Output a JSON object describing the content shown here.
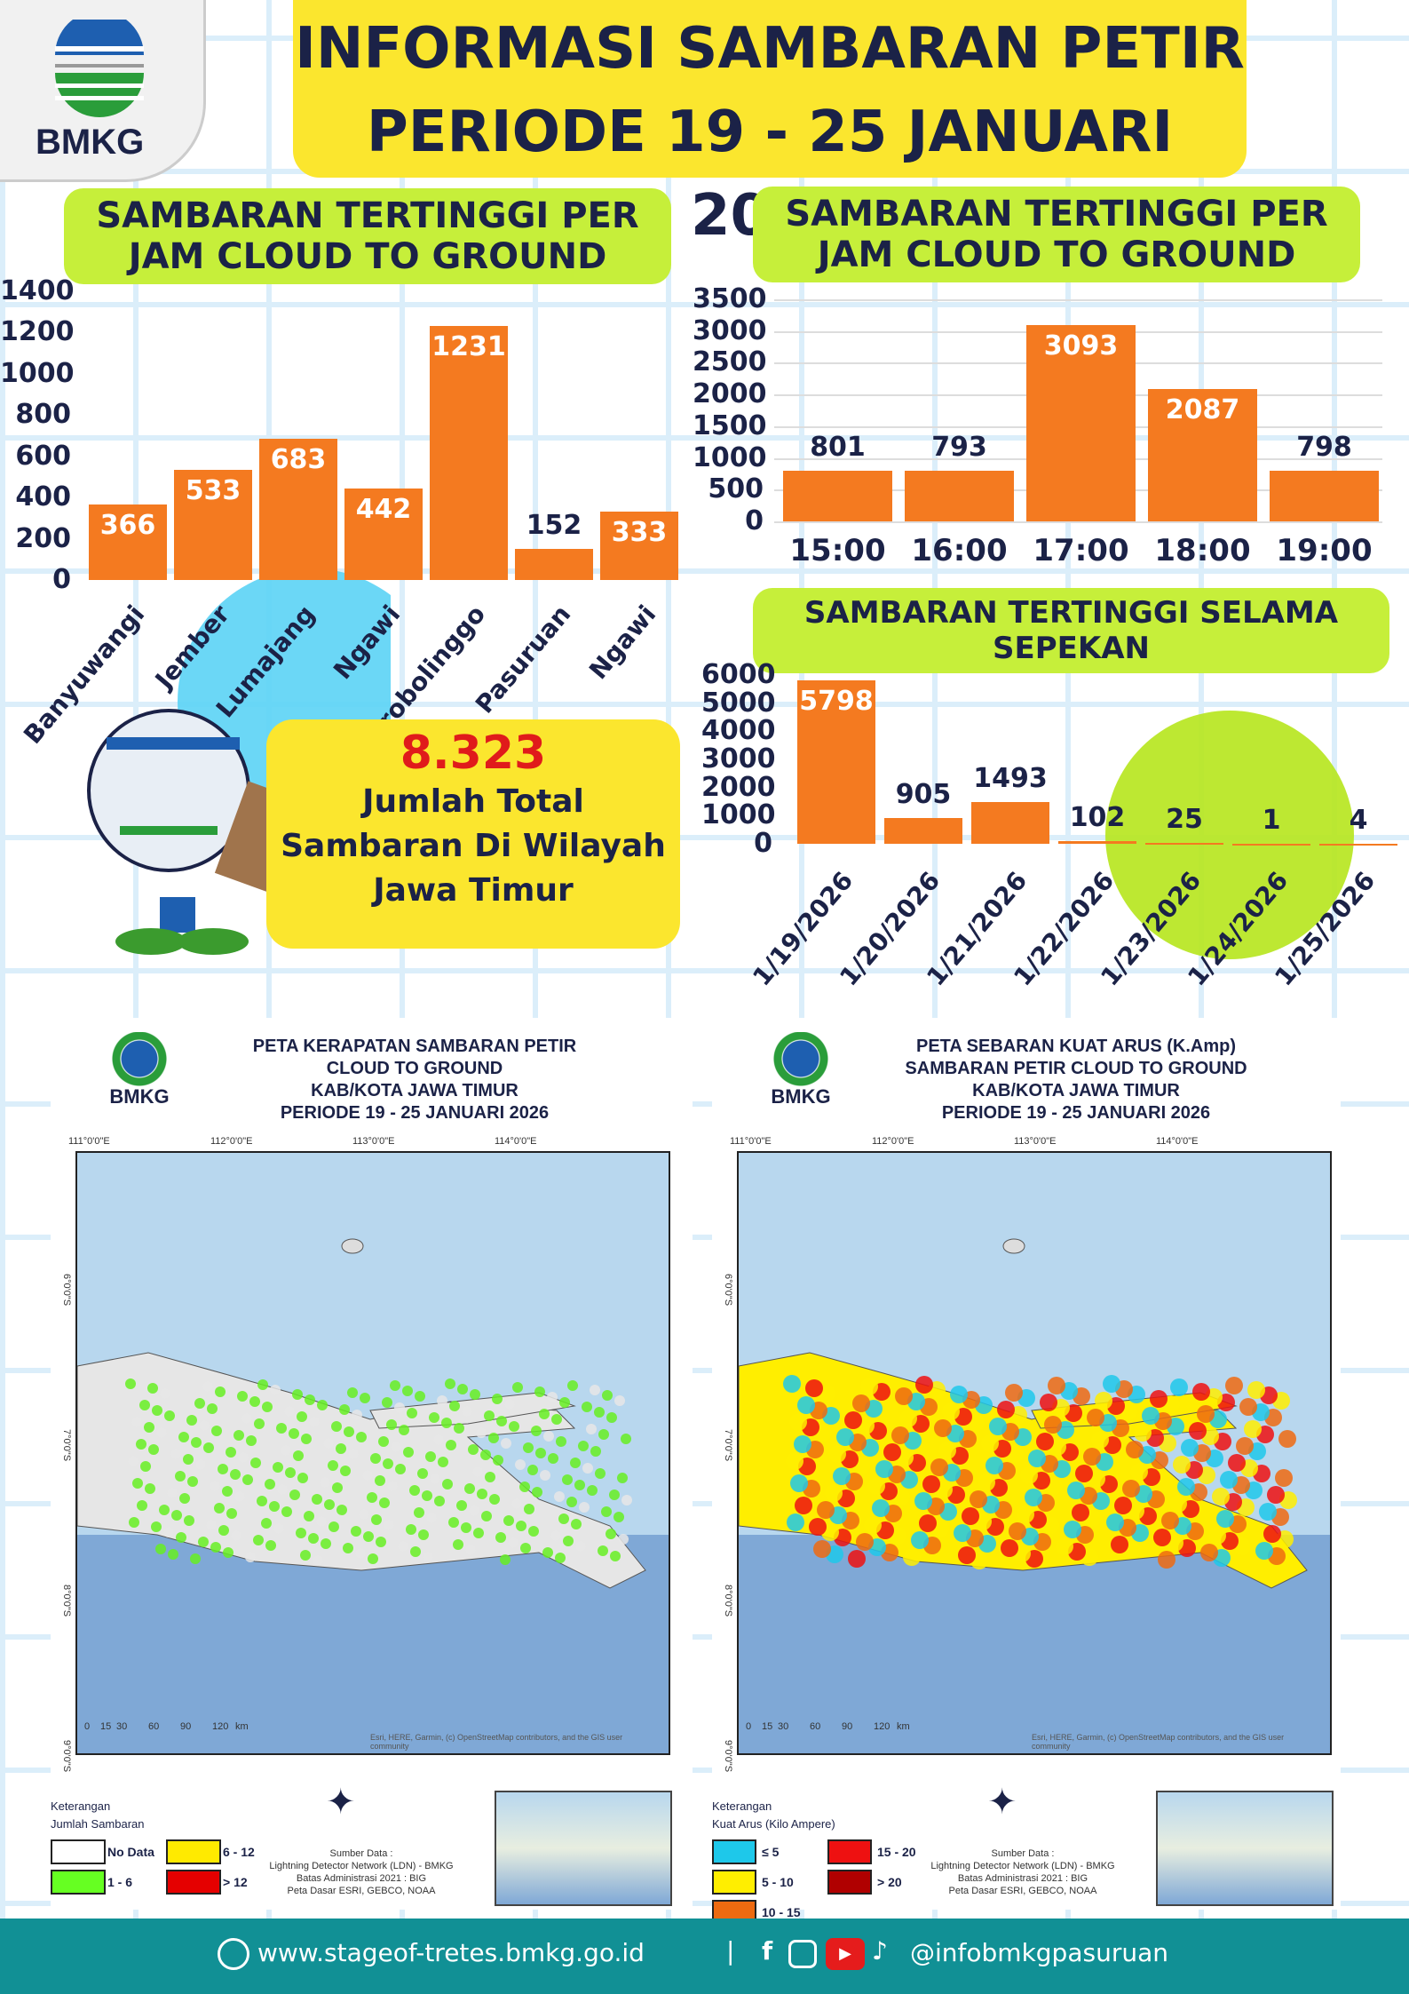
{
  "header": {
    "logo_text": "BMKG",
    "title_line1": "INFORMASI SAMBARAN PETIR",
    "title_line2": "PERIODE 19 - 25 JANUARI 2026"
  },
  "colors": {
    "bar": "#f47a20",
    "title_bg": "#fbe62e",
    "section_bg": "#c6ef3a",
    "footer_bg": "#119095",
    "text": "#1b2247"
  },
  "chart_data": [
    {
      "type": "bar",
      "title": "SAMBARAN TERTINGGI PER JAM CLOUD TO GROUND",
      "categories": [
        "Banyuwangi",
        "Jember",
        "Lumajang",
        "Ngawi",
        "Probolinggo",
        "Pasuruan",
        "Ngawi"
      ],
      "values": [
        366,
        533,
        683,
        442,
        1231,
        152,
        333
      ],
      "yticks": [
        0,
        200,
        400,
        600,
        800,
        1000,
        1200,
        1400
      ],
      "ylim": [
        0,
        1400
      ],
      "grid": false
    },
    {
      "type": "bar",
      "title": "SAMBARAN TERTINGGI PER JAM CLOUD TO GROUND",
      "categories": [
        "15:00",
        "16:00",
        "17:00",
        "18:00",
        "19:00"
      ],
      "values": [
        801,
        793,
        3093,
        2087,
        798
      ],
      "yticks": [
        0,
        500,
        1000,
        1500,
        2000,
        2500,
        3000,
        3500
      ],
      "ylim": [
        0,
        3500
      ],
      "grid": true
    },
    {
      "type": "bar",
      "title": "SAMBARAN TERTINGGI SELAMA SEPEKAN",
      "categories": [
        "1/19/2026",
        "1/20/2026",
        "1/21/2026",
        "1/22/2026",
        "1/23/2026",
        "1/24/2026",
        "1/25/2026"
      ],
      "values": [
        5798,
        905,
        1493,
        102,
        25,
        1,
        4
      ],
      "yticks": [
        0,
        1000,
        2000,
        3000,
        4000,
        5000,
        6000
      ],
      "ylim": [
        0,
        6000
      ],
      "grid": false
    }
  ],
  "total": {
    "value": "8.323",
    "line1": "Jumlah Total",
    "line2": "Sambaran Di Wilayah",
    "line3": "Jawa Timur"
  },
  "map_left": {
    "logo_text": "BMKG",
    "title": [
      "PETA KERAPATAN SAMBARAN PETIR",
      "CLOUD TO GROUND",
      "KAB/KOTA JAWA TIMUR",
      "PERIODE 19 - 25 JANUARI 2026"
    ],
    "lon_ticks": [
      "111°0'0\"E",
      "112°0'0\"E",
      "113°0'0\"E",
      "114°0'0\"E"
    ],
    "lat_ticks": [
      "6°0'0\"S",
      "7°0'0\"S",
      "8°0'0\"S",
      "9°0'0\"S"
    ],
    "scale": [
      "0",
      "15",
      "30",
      "60",
      "90",
      "120",
      "km"
    ],
    "legend_title": [
      "Keterangan",
      "Jumlah Sambaran"
    ],
    "legend": [
      {
        "label": "No Data",
        "color": "#ffffff"
      },
      {
        "label": "6 - 12",
        "color": "#ffea00"
      },
      {
        "label": "1 - 6",
        "color": "#66ff22"
      },
      {
        "label": "> 12",
        "color": "#e50000"
      }
    ],
    "source": [
      "Sumber Data :",
      "Lightning Detector Network (LDN) - BMKG",
      "Batas Administrasi 2021 : BIG",
      "Peta Dasar ESRI, GEBCO, NOAA"
    ],
    "credit": "Esri, HERE, Garmin, (c) OpenStreetMap contributors, and the GIS user community"
  },
  "map_right": {
    "logo_text": "BMKG",
    "title": [
      "PETA SEBARAN KUAT ARUS (K.Amp)",
      "SAMBARAN PETIR CLOUD TO GROUND",
      "KAB/KOTA JAWA TIMUR",
      "PERIODE 19 - 25 JANUARI 2026"
    ],
    "lon_ticks": [
      "111°0'0\"E",
      "112°0'0\"E",
      "113°0'0\"E",
      "114°0'0\"E"
    ],
    "lat_ticks": [
      "6°0'0\"S",
      "7°0'0\"S",
      "8°0'0\"S",
      "9°0'0\"S"
    ],
    "scale": [
      "0",
      "15",
      "30",
      "60",
      "90",
      "120",
      "km"
    ],
    "legend_title": [
      "Keterangan",
      "Kuat Arus (Kilo Ampere)"
    ],
    "legend": [
      {
        "label": "≤ 5",
        "color": "#1ec8ea"
      },
      {
        "label": "15 - 20",
        "color": "#ee1111"
      },
      {
        "label": "5 - 10",
        "color": "#ffee00"
      },
      {
        "label": "> 20",
        "color": "#b00000"
      },
      {
        "label": "10 - 15",
        "color": "#ee6a10"
      }
    ],
    "source": [
      "Sumber Data :",
      "Lightning Detector Network (LDN) - BMKG",
      "Batas Administrasi 2021 : BIG",
      "Peta Dasar ESRI, GEBCO, NOAA"
    ],
    "credit": "Esri, HERE, Garmin, (c) OpenStreetMap contributors, and the GIS user community"
  },
  "footer": {
    "website": "www.stageof-tretes.bmkg.go.id",
    "separator": "|",
    "handle": "@infobmkgpasuruan",
    "icons": [
      "globe-icon",
      "facebook-icon",
      "instagram-icon",
      "youtube-icon",
      "tiktok-icon"
    ]
  }
}
